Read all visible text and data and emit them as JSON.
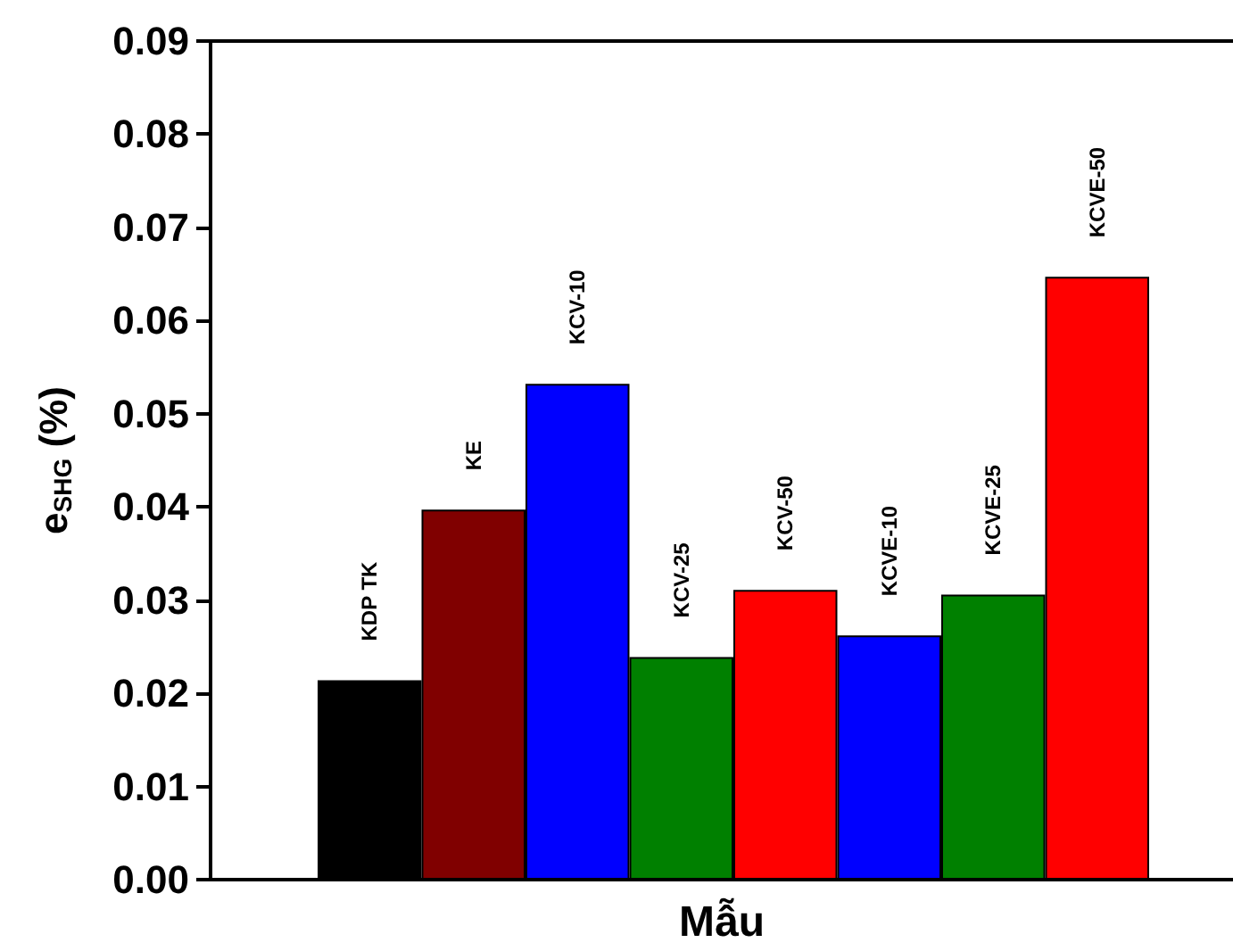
{
  "chart_data": {
    "type": "bar",
    "xlabel": "Mẫu",
    "ylabel": "e$_{SHG}$ (%)",
    "categories": [
      "KDP TK",
      "KE",
      "KCV-10",
      "KCV-25",
      "KCV-50",
      "KCVE-10",
      "KCVE-25",
      "KCVE-50"
    ],
    "values": [
      0.0214,
      0.0397,
      0.0532,
      0.0239,
      0.0311,
      0.0262,
      0.0306,
      0.0647
    ],
    "colors": [
      "#000000",
      "#800000",
      "#0000ff",
      "#008000",
      "#ff0000",
      "#0000ff",
      "#008000",
      "#ff0000"
    ],
    "ylim": [
      0,
      0.09
    ],
    "yticks": [
      {
        "value": 0,
        "label": "0.00"
      },
      {
        "value": 0.01,
        "label": "0.01"
      },
      {
        "value": 0.02,
        "label": "0.02"
      },
      {
        "value": 0.03,
        "label": "0.03"
      },
      {
        "value": 0.04,
        "label": "0.04"
      },
      {
        "value": 0.05,
        "label": "0.05"
      },
      {
        "value": 0.06,
        "label": "0.06"
      },
      {
        "value": 0.07,
        "label": "0.07"
      },
      {
        "value": 0.08,
        "label": "0.08"
      },
      {
        "value": 0.09,
        "label": "0.09"
      }
    ],
    "grid": false
  }
}
